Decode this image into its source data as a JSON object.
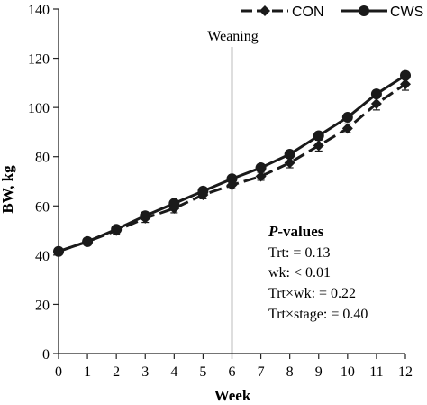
{
  "chart_data": {
    "type": "line",
    "xlabel": "Week",
    "ylabel": "BW, kg",
    "x": [
      0,
      1,
      2,
      3,
      4,
      5,
      6,
      7,
      8,
      9,
      10,
      11,
      12
    ],
    "xlim": [
      0,
      12
    ],
    "ylim": [
      0,
      140
    ],
    "y_ticks": [
      0,
      20,
      40,
      60,
      80,
      100,
      120,
      140
    ],
    "grid": false,
    "legend_position": "top-right",
    "series": [
      {
        "name": "CON",
        "marker": "diamond",
        "line_style": "dashed",
        "color": "#1a1a1a",
        "values": [
          41.5,
          45.5,
          50,
          55,
          59,
          64.5,
          68.5,
          72,
          77.5,
          84.5,
          91.5,
          101.5,
          109.5
        ],
        "error": [
          1.0,
          1.2,
          1.5,
          1.7,
          1.8,
          1.6,
          1.5,
          1.6,
          2.0,
          2.2,
          1.8,
          2.5,
          2.5
        ]
      },
      {
        "name": "CWS",
        "marker": "circle",
        "line_style": "solid",
        "color": "#1a1a1a",
        "values": [
          41.5,
          45.5,
          50.5,
          56,
          61,
          66,
          71,
          75.5,
          81,
          88.5,
          96,
          105.5,
          113
        ]
      }
    ],
    "annotations": {
      "weaning": {
        "label": "Weaning",
        "x": 6
      },
      "pvalues": {
        "title": "P-values",
        "lines": [
          "Trt: = 0.13",
          "wk: < 0.01",
          "Trt×wk: = 0.22",
          "Trt×stage: = 0.40"
        ]
      }
    }
  }
}
